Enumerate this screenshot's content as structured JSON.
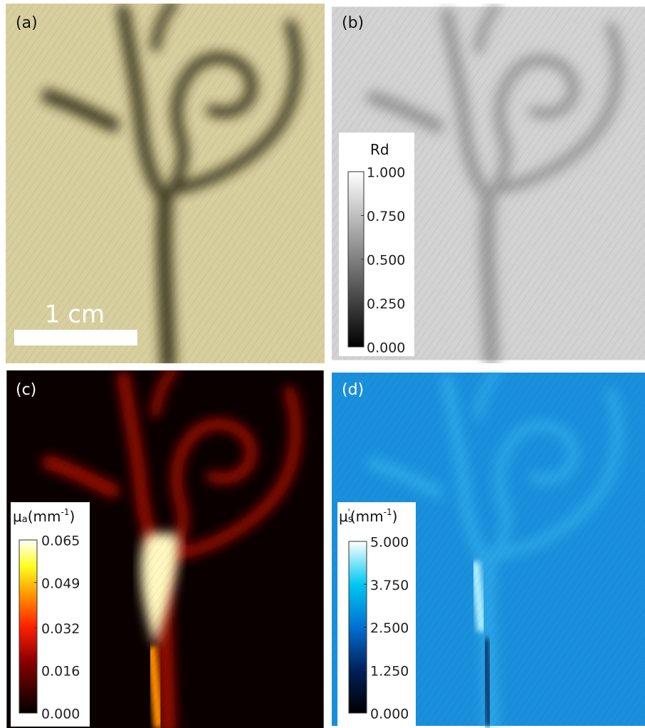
{
  "panels": [
    {
      "label": "(a)",
      "scale_bar": "1 cm"
    },
    {
      "label": "(b)",
      "colorbar": {
        "title_parts": [
          "Rd"
        ],
        "ticks": [
          {
            "value": 1,
            "label": "1.000"
          },
          {
            "value": 0.75,
            "label": "0.750"
          },
          {
            "value": 0.5,
            "label": "0.500"
          },
          {
            "value": 0.25,
            "label": "0.250"
          },
          {
            "value": 0,
            "label": "0.000"
          }
        ]
      }
    },
    {
      "label": "(c)",
      "colorbar": {
        "title_parts": [
          "μ",
          "a",
          "(mm",
          "-1",
          ")"
        ],
        "ticks": [
          {
            "value": 0.065,
            "label": "0.065"
          },
          {
            "value": 0.049,
            "label": "0.049"
          },
          {
            "value": 0.032,
            "label": "0.032"
          },
          {
            "value": 0.016,
            "label": "0.016"
          },
          {
            "value": 0,
            "label": "0.000"
          }
        ]
      }
    },
    {
      "label": "(d)",
      "colorbar": {
        "title_parts": [
          "μ",
          "s",
          "'",
          "(mm",
          "-1",
          ")"
        ],
        "ticks": [
          {
            "value": 5,
            "label": "5.000"
          },
          {
            "value": 3.75,
            "label": "3.750"
          },
          {
            "value": 2.5,
            "label": "2.500"
          },
          {
            "value": 1.25,
            "label": "1.250"
          },
          {
            "value": 0,
            "label": "0.000"
          }
        ]
      }
    }
  ]
}
